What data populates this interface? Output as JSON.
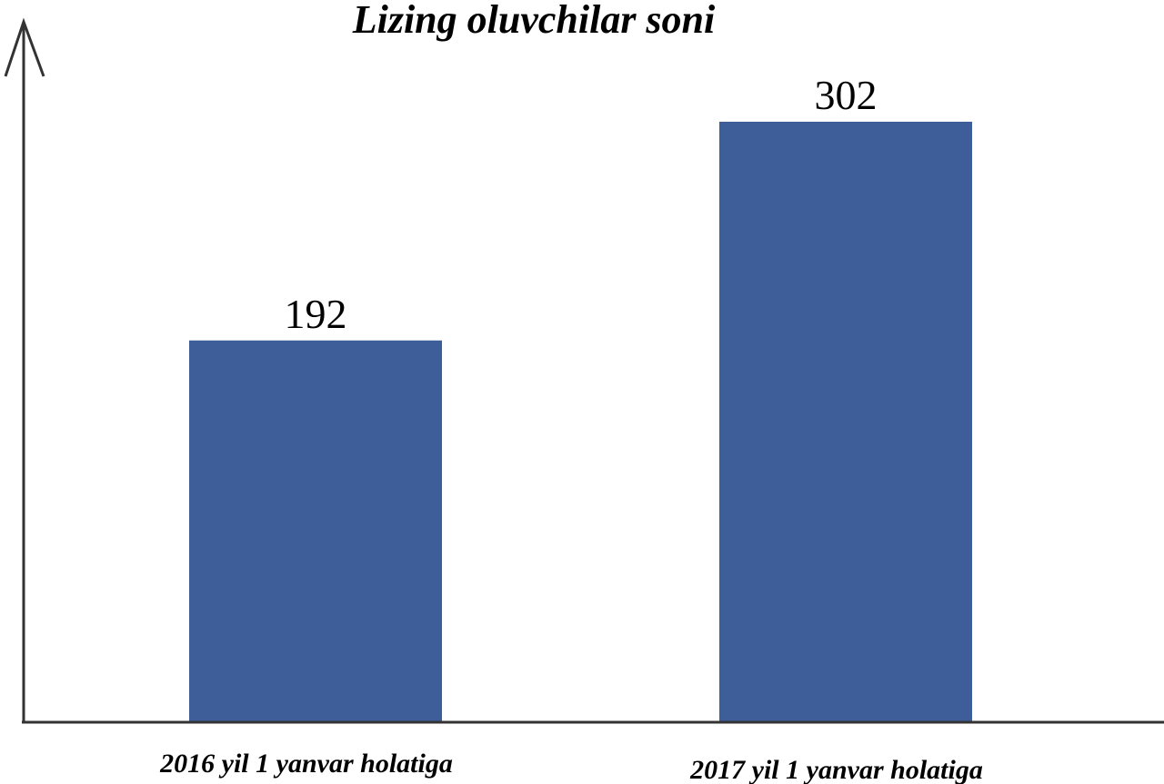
{
  "chart_data": {
    "type": "bar",
    "title": "Lizing oluvchilar soni",
    "categories": [
      "2016 yil 1 yanvar holatiga",
      "2017 yil 1 yanvar holatiga"
    ],
    "values": [
      192,
      302
    ],
    "value_labels": [
      "192",
      "302"
    ],
    "ylim": [
      0,
      302
    ],
    "grid": false,
    "legend": "none",
    "bar_color": "#3d5e98",
    "axis_color": "#333333"
  }
}
